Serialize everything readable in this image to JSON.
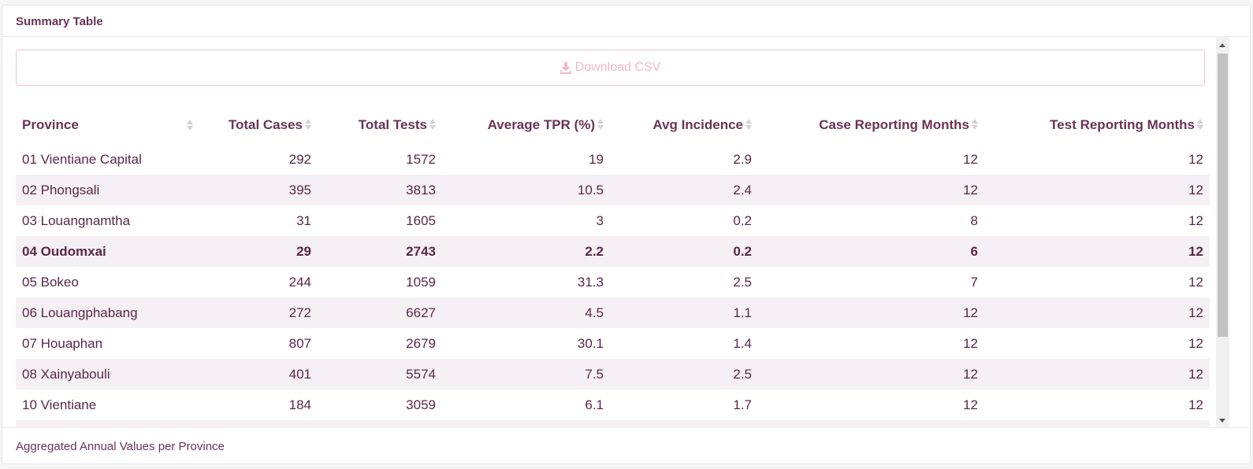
{
  "card": {
    "title": "Summary Table",
    "footer": "Aggregated Annual Values per Province"
  },
  "download": {
    "label": "Download CSV",
    "icon": "download-icon",
    "color": "#f0b6cd"
  },
  "table": {
    "columns": [
      {
        "key": "province",
        "label": "Province"
      },
      {
        "key": "total_cases",
        "label": "Total Cases"
      },
      {
        "key": "total_tests",
        "label": "Total Tests"
      },
      {
        "key": "average_tpr",
        "label": "Average TPR (%)"
      },
      {
        "key": "avg_incidence",
        "label": "Avg Incidence"
      },
      {
        "key": "case_reporting_months",
        "label": "Case Reporting Months"
      },
      {
        "key": "test_reporting_months",
        "label": "Test Reporting Months"
      }
    ],
    "rows": [
      {
        "province": "01 Vientiane Capital",
        "total_cases": "292",
        "total_tests": "1572",
        "average_tpr": "19",
        "avg_incidence": "2.9",
        "case_reporting_months": "12",
        "test_reporting_months": "12"
      },
      {
        "province": "02 Phongsali",
        "total_cases": "395",
        "total_tests": "3813",
        "average_tpr": "10.5",
        "avg_incidence": "2.4",
        "case_reporting_months": "12",
        "test_reporting_months": "12"
      },
      {
        "province": "03 Louangnamtha",
        "total_cases": "31",
        "total_tests": "1605",
        "average_tpr": "3",
        "avg_incidence": "0.2",
        "case_reporting_months": "8",
        "test_reporting_months": "12"
      },
      {
        "province": "04 Oudomxai",
        "total_cases": "29",
        "total_tests": "2743",
        "average_tpr": "2.2",
        "avg_incidence": "0.2",
        "case_reporting_months": "6",
        "test_reporting_months": "12"
      },
      {
        "province": "05 Bokeo",
        "total_cases": "244",
        "total_tests": "1059",
        "average_tpr": "31.3",
        "avg_incidence": "2.5",
        "case_reporting_months": "7",
        "test_reporting_months": "12"
      },
      {
        "province": "06 Louangphabang",
        "total_cases": "272",
        "total_tests": "6627",
        "average_tpr": "4.5",
        "avg_incidence": "1.1",
        "case_reporting_months": "12",
        "test_reporting_months": "12"
      },
      {
        "province": "07 Houaphan",
        "total_cases": "807",
        "total_tests": "2679",
        "average_tpr": "30.1",
        "avg_incidence": "1.4",
        "case_reporting_months": "12",
        "test_reporting_months": "12"
      },
      {
        "province": "08 Xainyabouli",
        "total_cases": "401",
        "total_tests": "5574",
        "average_tpr": "7.5",
        "avg_incidence": "2.5",
        "case_reporting_months": "12",
        "test_reporting_months": "12"
      },
      {
        "province": "10 Vientiane",
        "total_cases": "184",
        "total_tests": "3059",
        "average_tpr": "6.1",
        "avg_incidence": "1.7",
        "case_reporting_months": "12",
        "test_reporting_months": "12"
      }
    ],
    "highlighted_row": "04 Oudomxai",
    "sort_icon": "sort-icon"
  },
  "colors": {
    "text": "#5a2848",
    "header_text": "#6a3357",
    "stripe": "#f5f0f3",
    "button_border": "#f3c2d6"
  }
}
